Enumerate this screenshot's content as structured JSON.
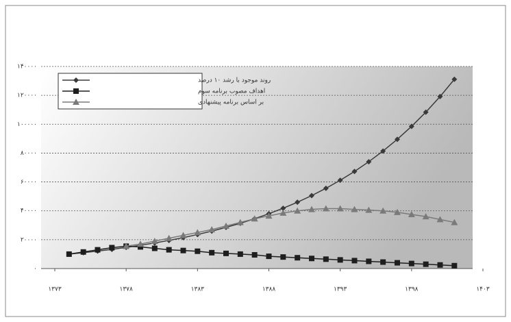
{
  "chart_data": {
    "type": "line",
    "x": [
      1374,
      1375,
      1376,
      1377,
      1378,
      1379,
      1380,
      1381,
      1382,
      1383,
      1384,
      1385,
      1386,
      1387,
      1388,
      1389,
      1390,
      1391,
      1392,
      1393,
      1394,
      1395,
      1396,
      1397,
      1398,
      1399,
      1400,
      1401
    ],
    "series": [
      {
        "name": "روند موجود با رشد ۱۰ درصد",
        "color": "#3a3a3a",
        "marker": "diamond",
        "values": [
          10000,
          11000,
          12100,
          13310,
          14641,
          16105,
          17716,
          19487,
          21436,
          23579,
          25937,
          28531,
          31384,
          34523,
          37975,
          41772,
          45950,
          50545,
          55599,
          61159,
          67275,
          74002,
          81403,
          89543,
          98497,
          108347,
          119182,
          131100
        ]
      },
      {
        "name": "اهداف مصوب برنامه سوم",
        "color": "#1e1e1e",
        "marker": "square",
        "values": [
          10000,
          11500,
          13000,
          14500,
          15500,
          15000,
          14000,
          13000,
          12500,
          12000,
          11000,
          10500,
          10000,
          9500,
          8500,
          8000,
          7500,
          7000,
          6500,
          6000,
          5500,
          5000,
          4500,
          4000,
          3500,
          3000,
          2500,
          2000
        ]
      },
      {
        "name": "بر اساس برنامه پیشنهادی",
        "color": "#7a7a7a",
        "marker": "triangle",
        "values": [
          null,
          null,
          null,
          null,
          15500,
          17000,
          19000,
          21000,
          23000,
          25000,
          27000,
          29500,
          32000,
          34500,
          36500,
          38500,
          40000,
          41000,
          41500,
          41500,
          41000,
          40500,
          40000,
          39000,
          37500,
          36000,
          34000,
          32000
        ]
      }
    ],
    "xlim": [
      1373,
      1403
    ],
    "xticks": [
      {
        "value": 1373,
        "label": "۱۳۷۳"
      },
      {
        "value": 1378,
        "label": "۱۳۷۸"
      },
      {
        "value": 1383,
        "label": "۱۳۸۳"
      },
      {
        "value": 1388,
        "label": "۱۳۸۸"
      },
      {
        "value": 1393,
        "label": "۱۳۹۳"
      },
      {
        "value": 1398,
        "label": "۱۳۹۸"
      },
      {
        "value": 1403,
        "label": "۱۴۰۳"
      }
    ],
    "ylim": [
      0,
      140000
    ],
    "yticks": [
      {
        "value": 0,
        "label": "۰"
      },
      {
        "value": 20000,
        "label": "۲۰۰۰۰"
      },
      {
        "value": 40000,
        "label": "۴۰۰۰۰"
      },
      {
        "value": 60000,
        "label": "۶۰۰۰۰"
      },
      {
        "value": 80000,
        "label": "۸۰۰۰۰"
      },
      {
        "value": 100000,
        "label": "۱۰۰۰۰۰"
      },
      {
        "value": 120000,
        "label": "۱۲۰۰۰۰"
      },
      {
        "value": 140000,
        "label": "۱۴۰۰۰۰"
      }
    ],
    "grid": true,
    "legend": "top-left"
  }
}
